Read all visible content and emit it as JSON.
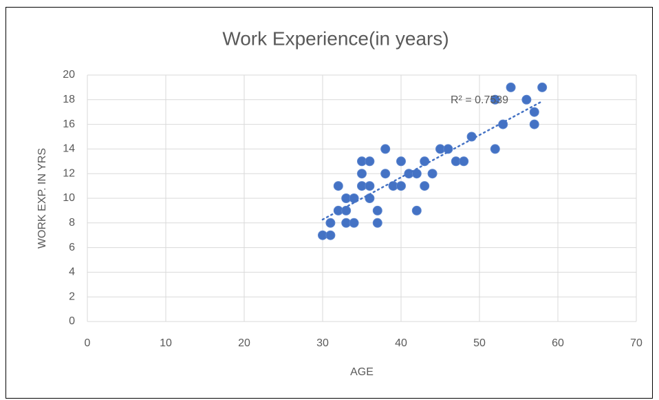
{
  "chart_data": {
    "type": "scatter",
    "title": "Work Experience(in years)",
    "x_label": "AGE",
    "y_label": "WORK EXP. IN YRS",
    "annotation": "R² = 0.7539",
    "series": [
      {
        "name": "WORK EXP. IN YRS",
        "color": "#4472c4",
        "x": [
          30,
          31,
          31,
          32,
          32,
          33,
          33,
          33,
          34,
          34,
          35,
          35,
          35,
          36,
          36,
          36,
          37,
          37,
          38,
          38,
          39,
          40,
          40,
          41,
          42,
          42,
          43,
          43,
          44,
          45,
          46,
          47,
          48,
          49,
          52,
          52,
          53,
          54,
          56,
          57,
          57,
          58
        ],
        "values": [
          7,
          7,
          8,
          9,
          11,
          10,
          9,
          8,
          10,
          8,
          13,
          12,
          11,
          13,
          11,
          10,
          9,
          8,
          14,
          12,
          11,
          13,
          11,
          12,
          12,
          9,
          13,
          11,
          12,
          14,
          14,
          13,
          13,
          15,
          18,
          14,
          16,
          19,
          18,
          17,
          16,
          19
        ]
      }
    ],
    "xlim": [
      0,
      70
    ],
    "xticks": [
      0,
      10,
      20,
      30,
      40,
      50,
      60,
      70
    ],
    "ylim": [
      0,
      20
    ],
    "yticks": [
      0,
      2,
      4,
      6,
      8,
      10,
      12,
      14,
      16,
      18,
      20
    ],
    "grid": true,
    "trendline": "linear"
  }
}
